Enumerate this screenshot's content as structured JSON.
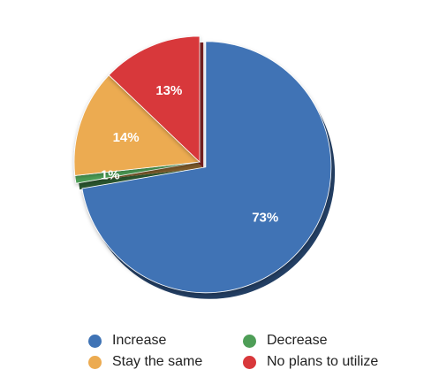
{
  "chart_data": {
    "type": "pie",
    "title": "",
    "categories": [
      "Increase",
      "Decrease",
      "Stay the same",
      "No plans to utilize"
    ],
    "values": [
      73,
      1,
      14,
      13
    ],
    "value_labels": [
      "73%",
      "1%",
      "14%",
      "13%"
    ],
    "colors": [
      "#3f73b5",
      "#4e9e57",
      "#ecab51",
      "#d8383b"
    ],
    "start_angle_deg": 0,
    "direction": "clockwise",
    "exploded_slice": "Increase",
    "legend_position": "bottom"
  },
  "legend": {
    "items": [
      {
        "label": "Increase",
        "color": "#3f73b5"
      },
      {
        "label": "Decrease",
        "color": "#4e9e57"
      },
      {
        "label": "Stay the same",
        "color": "#ecab51"
      },
      {
        "label": "No plans to utilize",
        "color": "#d8383b"
      }
    ]
  }
}
